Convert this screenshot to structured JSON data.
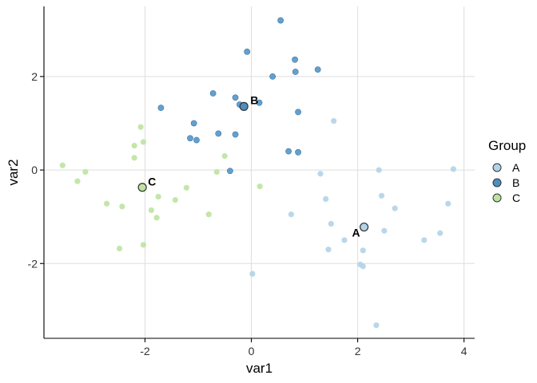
{
  "chart_data": {
    "type": "scatter",
    "title": "",
    "xlabel": "var1",
    "ylabel": "var2",
    "xlim": [
      -3.9,
      4.2
    ],
    "ylim": [
      -3.6,
      3.5
    ],
    "xticks": [
      -2,
      0,
      2,
      4
    ],
    "xtick_labels": [
      "-2",
      "0",
      "2",
      "4"
    ],
    "yticks": [
      -2,
      0,
      2
    ],
    "ytick_labels": [
      "-2",
      "0",
      "2"
    ],
    "grid": true,
    "legend": {
      "title": "Group",
      "placement": "right",
      "entries": [
        "A",
        "B",
        "C"
      ]
    },
    "colors": {
      "A": "#b3d3e8",
      "B": "#4a8fc4",
      "C": "#bde3a0",
      "stroke": "#333333"
    },
    "series": [
      {
        "name": "A",
        "points": [
          [
            1.55,
            1.05
          ],
          [
            3.8,
            0.02
          ],
          [
            2.4,
            0.0
          ],
          [
            1.3,
            -0.08
          ],
          [
            1.4,
            -0.62
          ],
          [
            2.45,
            -0.55
          ],
          [
            2.7,
            -0.82
          ],
          [
            3.7,
            -0.72
          ],
          [
            0.75,
            -0.95
          ],
          [
            1.5,
            -1.15
          ],
          [
            2.5,
            -1.3
          ],
          [
            3.55,
            -1.35
          ],
          [
            1.75,
            -1.5
          ],
          [
            3.25,
            -1.5
          ],
          [
            1.45,
            -1.7
          ],
          [
            2.1,
            -1.72
          ],
          [
            2.05,
            -2.02
          ],
          [
            2.1,
            -2.06
          ],
          [
            0.02,
            -2.22
          ],
          [
            2.35,
            -3.32
          ]
        ],
        "centroid": [
          2.12,
          -1.22
        ]
      },
      {
        "name": "B",
        "points": [
          [
            0.55,
            3.2
          ],
          [
            -0.08,
            2.53
          ],
          [
            0.82,
            2.36
          ],
          [
            1.25,
            2.15
          ],
          [
            0.83,
            2.1
          ],
          [
            0.4,
            2.0
          ],
          [
            -0.72,
            1.64
          ],
          [
            -0.3,
            1.55
          ],
          [
            -0.22,
            1.4
          ],
          [
            -0.12,
            1.38
          ],
          [
            0.15,
            1.44
          ],
          [
            -1.7,
            1.33
          ],
          [
            0.88,
            1.24
          ],
          [
            -1.08,
            1.0
          ],
          [
            -0.62,
            0.78
          ],
          [
            -0.3,
            0.76
          ],
          [
            -1.15,
            0.68
          ],
          [
            -1.03,
            0.64
          ],
          [
            0.7,
            0.4
          ],
          [
            0.88,
            0.38
          ],
          [
            -0.4,
            -0.02
          ]
        ],
        "centroid": [
          -0.14,
          1.36
        ]
      },
      {
        "name": "C",
        "points": [
          [
            -2.08,
            0.92
          ],
          [
            -2.03,
            0.6
          ],
          [
            -2.2,
            0.52
          ],
          [
            -2.2,
            0.26
          ],
          [
            -0.5,
            0.3
          ],
          [
            -3.55,
            0.1
          ],
          [
            -3.12,
            -0.04
          ],
          [
            -0.65,
            -0.04
          ],
          [
            -3.27,
            -0.24
          ],
          [
            0.16,
            -0.35
          ],
          [
            -1.22,
            -0.38
          ],
          [
            -1.75,
            -0.57
          ],
          [
            -1.43,
            -0.64
          ],
          [
            -2.72,
            -0.72
          ],
          [
            -2.43,
            -0.78
          ],
          [
            -1.88,
            -0.86
          ],
          [
            -0.8,
            -0.95
          ],
          [
            -1.78,
            -1.02
          ],
          [
            -2.03,
            -1.6
          ],
          [
            -2.48,
            -1.68
          ]
        ],
        "centroid": [
          -2.05,
          -0.37
        ]
      }
    ]
  }
}
